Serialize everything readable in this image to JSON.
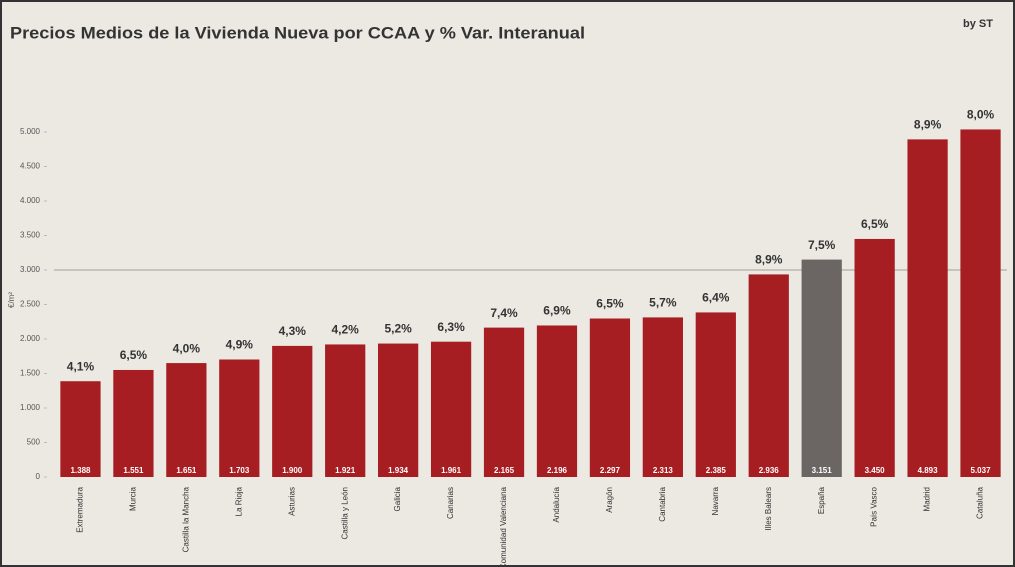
{
  "chart_data": {
    "type": "bar",
    "title": "Precios Medios de la Vivienda Nueva por CCAA y % Var. Interanual",
    "source": "by ST",
    "y_label": "€/m²",
    "categories": [
      "Extremadura",
      "Murcia",
      "Castilla la Mancha",
      "La Rioja",
      "Asturias",
      "Castilla y León",
      "Galicia",
      "Canarias",
      "Comunidad Valenciana",
      "Andalucía",
      "Aragón",
      "Cantabria",
      "Navarra",
      "Illes Balears",
      "España",
      "País Vasco",
      "Madrid",
      "Cataluña"
    ],
    "values": [
      1388,
      1551,
      1651,
      1703,
      1900,
      1921,
      1934,
      1961,
      2165,
      2196,
      2297,
      2313,
      2385,
      2936,
      3151,
      3450,
      4893,
      5037
    ],
    "value_labels": [
      "1.388",
      "1.551",
      "1.651",
      "1.703",
      "1.900",
      "1.921",
      "1.934",
      "1.961",
      "2.165",
      "2.196",
      "2.297",
      "2.313",
      "2.385",
      "2.936",
      "3.151",
      "3.450",
      "4.893",
      "5.037"
    ],
    "variation_labels": [
      "4,1%",
      "6,5%",
      "4,0%",
      "4,9%",
      "4,3%",
      "4,2%",
      "5,2%",
      "6,3%",
      "7,4%",
      "6,9%",
      "6,5%",
      "5,7%",
      "6,4%",
      "8,9%",
      "7,5%",
      "6,5%",
      "8,9%",
      "8,0%"
    ],
    "colors": [
      "#a61e22",
      "#a61e22",
      "#a61e22",
      "#a61e22",
      "#a61e22",
      "#a61e22",
      "#a61e22",
      "#a61e22",
      "#a61e22",
      "#a61e22",
      "#a61e22",
      "#a61e22",
      "#a61e22",
      "#a61e22",
      "#6b6563",
      "#a61e22",
      "#a61e22",
      "#a61e22"
    ],
    "ylim": [
      0,
      5500
    ],
    "yticks": [
      0,
      500,
      {
        "value": 1000,
        "label": "1.000"
      },
      {
        "value": 1500,
        "label": "1.500"
      },
      {
        "value": 2000,
        "label": "2.000"
      },
      {
        "value": 2500,
        "label": "2.500"
      },
      {
        "value": 3000,
        "label": "3.000"
      },
      {
        "value": 3500,
        "label": "3.500"
      },
      {
        "value": 4000,
        "label": "4.000"
      },
      {
        "value": 4500,
        "label": "4.500"
      },
      {
        "value": 5000,
        "label": "5.000"
      }
    ],
    "reference_line": 3000,
    "grid": false
  }
}
